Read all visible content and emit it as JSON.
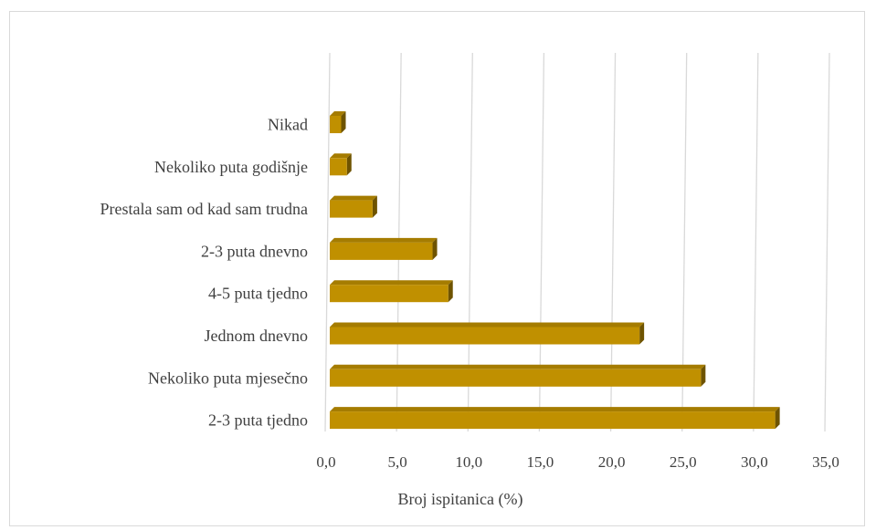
{
  "chart_data": {
    "type": "bar",
    "orientation": "horizontal",
    "style": "3d",
    "categories": [
      "Nikad",
      "Nekoliko puta godišnje",
      "Prestala sam od kad sam trudna",
      "2-3 puta dnevno",
      "4-5 puta tjedno",
      "Jednom dnevno",
      "Nekoliko puta mjesečno",
      "2-3 puta tjedno"
    ],
    "values": [
      0.8,
      1.2,
      3.0,
      7.2,
      8.3,
      21.7,
      26.0,
      31.2
    ],
    "xlabel": "Broj ispitanica (%)",
    "xlim": [
      0,
      35
    ],
    "xticks": [
      "0,0",
      "5,0",
      "10,0",
      "15,0",
      "20,0",
      "25,0",
      "30,0",
      "35,0"
    ],
    "grid": true,
    "legend": "none",
    "colors": {
      "bar_front": "#c09000",
      "bar_top": "#a57c00",
      "bar_side": "#6e5300",
      "gridline": "#d9d9d9",
      "text": "#404040"
    }
  }
}
